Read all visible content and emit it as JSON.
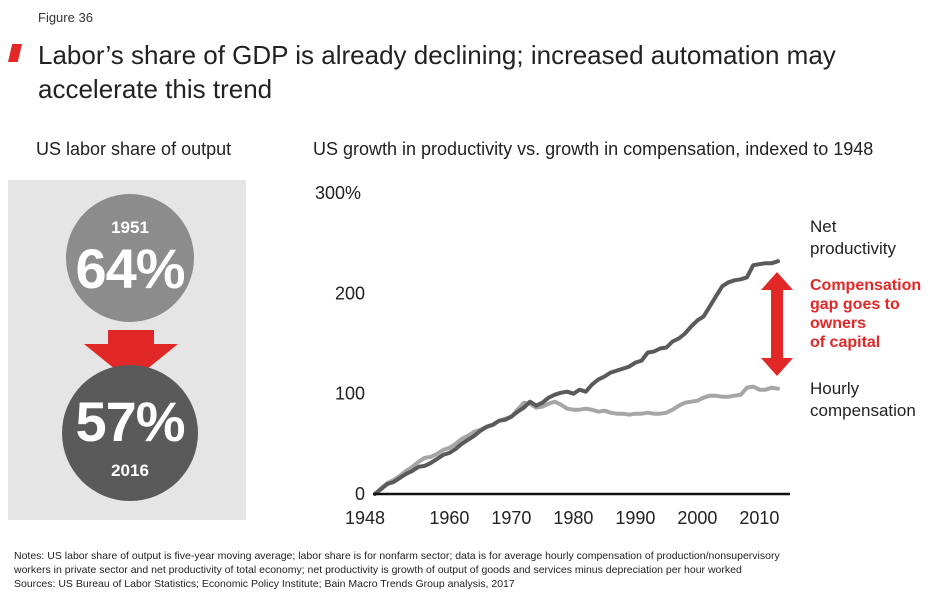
{
  "figure_label": "Figure 36",
  "title": "Labor’s share of GDP is already declining; increased automation may accelerate this trend",
  "left_panel": {
    "subtitle": "US labor share of output",
    "top": {
      "year": "1951",
      "value": "64%"
    },
    "bottom": {
      "year": "2016",
      "value": "57%"
    }
  },
  "colors": {
    "accent_red": "#e12826",
    "productivity": "#5a5a5a",
    "compensation": "#a6a6a6",
    "panel_bg": "#e5e5e5"
  },
  "chart_data": {
    "type": "line",
    "title": "US growth in productivity vs. growth in compensation, indexed to 1948",
    "x_ticks": [
      "1948",
      "1960",
      "1970",
      "1980",
      "1990",
      "2000",
      "2010"
    ],
    "y_ticks": [
      "0",
      "100",
      "200",
      "300%"
    ],
    "xlim": [
      1948,
      2013
    ],
    "ylim": [
      0,
      300
    ],
    "grid": false,
    "series": [
      {
        "name": "Net productivity",
        "color": "#5a5a5a",
        "x": [
          1948,
          1949,
          1950,
          1951,
          1952,
          1953,
          1954,
          1955,
          1956,
          1957,
          1958,
          1959,
          1960,
          1961,
          1962,
          1963,
          1964,
          1965,
          1966,
          1967,
          1968,
          1969,
          1970,
          1971,
          1972,
          1973,
          1974,
          1975,
          1976,
          1977,
          1978,
          1979,
          1980,
          1981,
          1982,
          1983,
          1984,
          1985,
          1986,
          1987,
          1988,
          1989,
          1990,
          1991,
          1992,
          1993,
          1994,
          1995,
          1996,
          1997,
          1998,
          1999,
          2000,
          2001,
          2002,
          2003,
          2004,
          2005,
          2006,
          2007,
          2008,
          2009,
          2010,
          2011,
          2012,
          2013
        ],
        "values": [
          0,
          5,
          10,
          12,
          16,
          20,
          23,
          27,
          28,
          31,
          35,
          39,
          41,
          45,
          50,
          54,
          58,
          63,
          67,
          69,
          73,
          74,
          77,
          82,
          86,
          92,
          88,
          91,
          96,
          99,
          101,
          102,
          100,
          104,
          102,
          109,
          114,
          117,
          121,
          123,
          125,
          127,
          131,
          133,
          141,
          142,
          145,
          146,
          152,
          155,
          160,
          167,
          173,
          177,
          187,
          197,
          207,
          211,
          213,
          214,
          216,
          228,
          229,
          230,
          230,
          232
        ]
      },
      {
        "name": "Hourly compensation",
        "color": "#a6a6a6",
        "x": [
          1948,
          1949,
          1950,
          1951,
          1952,
          1953,
          1954,
          1955,
          1956,
          1957,
          1958,
          1959,
          1960,
          1961,
          1962,
          1963,
          1964,
          1965,
          1966,
          1967,
          1968,
          1969,
          1970,
          1971,
          1972,
          1973,
          1974,
          1975,
          1976,
          1977,
          1978,
          1979,
          1980,
          1981,
          1982,
          1983,
          1984,
          1985,
          1986,
          1987,
          1988,
          1989,
          1990,
          1991,
          1992,
          1993,
          1994,
          1995,
          1996,
          1997,
          1998,
          1999,
          2000,
          2001,
          2002,
          2003,
          2004,
          2005,
          2006,
          2007,
          2008,
          2009,
          2010,
          2011,
          2012,
          2013
        ],
        "values": [
          0,
          6,
          11,
          14,
          18,
          23,
          27,
          32,
          36,
          37,
          40,
          44,
          46,
          50,
          55,
          58,
          62,
          64,
          67,
          69,
          73,
          75,
          77,
          84,
          91,
          90,
          86,
          87,
          90,
          92,
          89,
          85,
          84,
          84,
          85,
          84,
          82,
          83,
          81,
          80,
          80,
          79,
          80,
          80,
          81,
          80,
          80,
          81,
          84,
          88,
          91,
          92,
          93,
          96,
          98,
          98,
          97,
          97,
          98,
          99,
          106,
          107,
          104,
          104,
          106,
          105
        ]
      }
    ],
    "annotation": "Compensation gap goes to owners of capital",
    "series_labels": {
      "productivity": [
        "Net",
        "productivity"
      ],
      "compensation": [
        "Hourly",
        "compensation"
      ]
    },
    "annotation_lines": [
      "Compensation",
      "gap goes to",
      "owners",
      "of capital"
    ]
  },
  "notes": [
    "Notes: US labor share of output is five-year moving average; labor share is for nonfarm sector; data is for average hourly compensation of production/nonsupervisory",
    "workers in private sector and net productivity of total economy; net productivity is growth of output of goods and services minus depreciation per hour worked",
    "Sources: US Bureau of Labor Statistics; Economic Policy Institute; Bain Macro Trends Group analysis, 2017"
  ]
}
